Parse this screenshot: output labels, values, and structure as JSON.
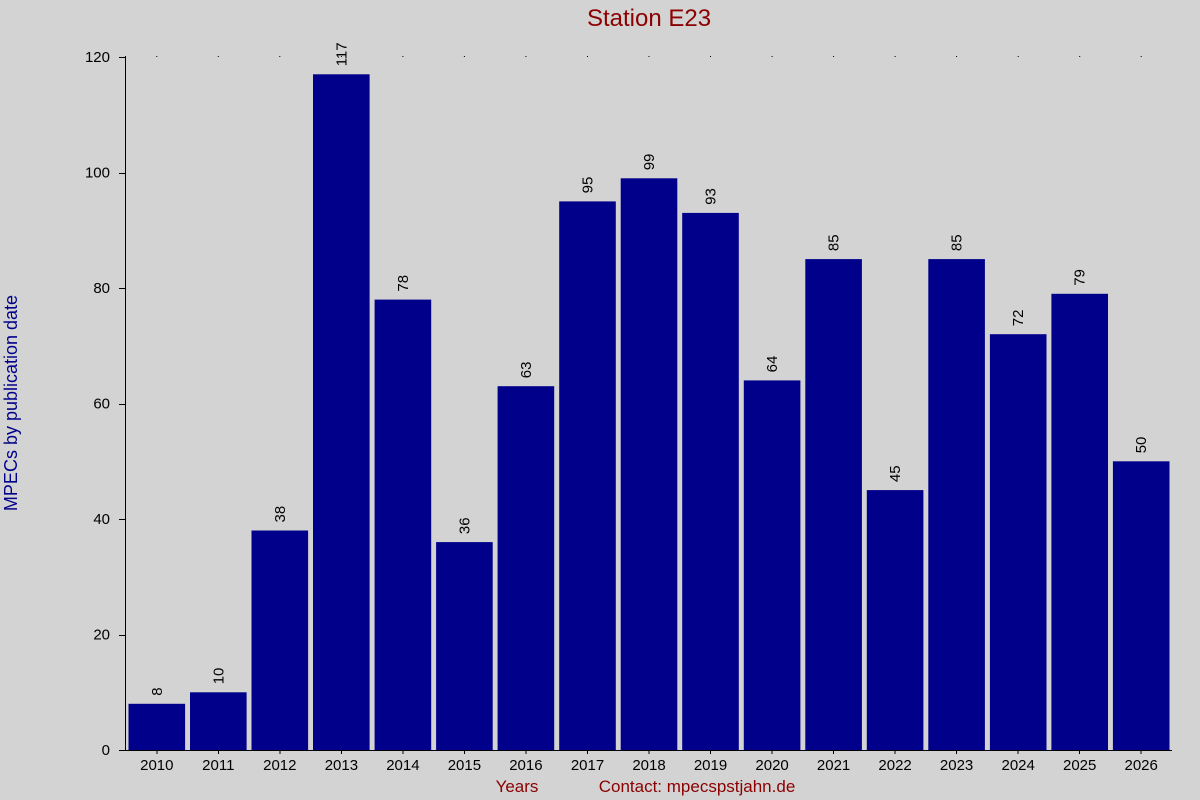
{
  "chart_data": {
    "type": "bar",
    "title": "Station E23",
    "xlabel": "Years",
    "ylabel": "MPECs by publication date",
    "footer_contact": "Contact: mpecspstjahn.de",
    "categories": [
      "2010",
      "2011",
      "2012",
      "2013",
      "2014",
      "2015",
      "2016",
      "2017",
      "2018",
      "2019",
      "2020",
      "2021",
      "2022",
      "2023",
      "2024",
      "2025",
      "2026"
    ],
    "values": [
      8,
      10,
      38,
      117,
      78,
      36,
      63,
      95,
      99,
      93,
      64,
      85,
      45,
      85,
      72,
      79,
      50
    ],
    "ylim": [
      0,
      120
    ],
    "yticks": [
      0,
      20,
      40,
      60,
      80,
      100,
      120
    ],
    "grid": false,
    "legend": "none"
  },
  "colors": {
    "background": "#d3d3d3",
    "bar": "#00008b",
    "title": "#8b0000",
    "ylabel": "#00008b",
    "footer": "#8b0000",
    "text": "#000000"
  }
}
